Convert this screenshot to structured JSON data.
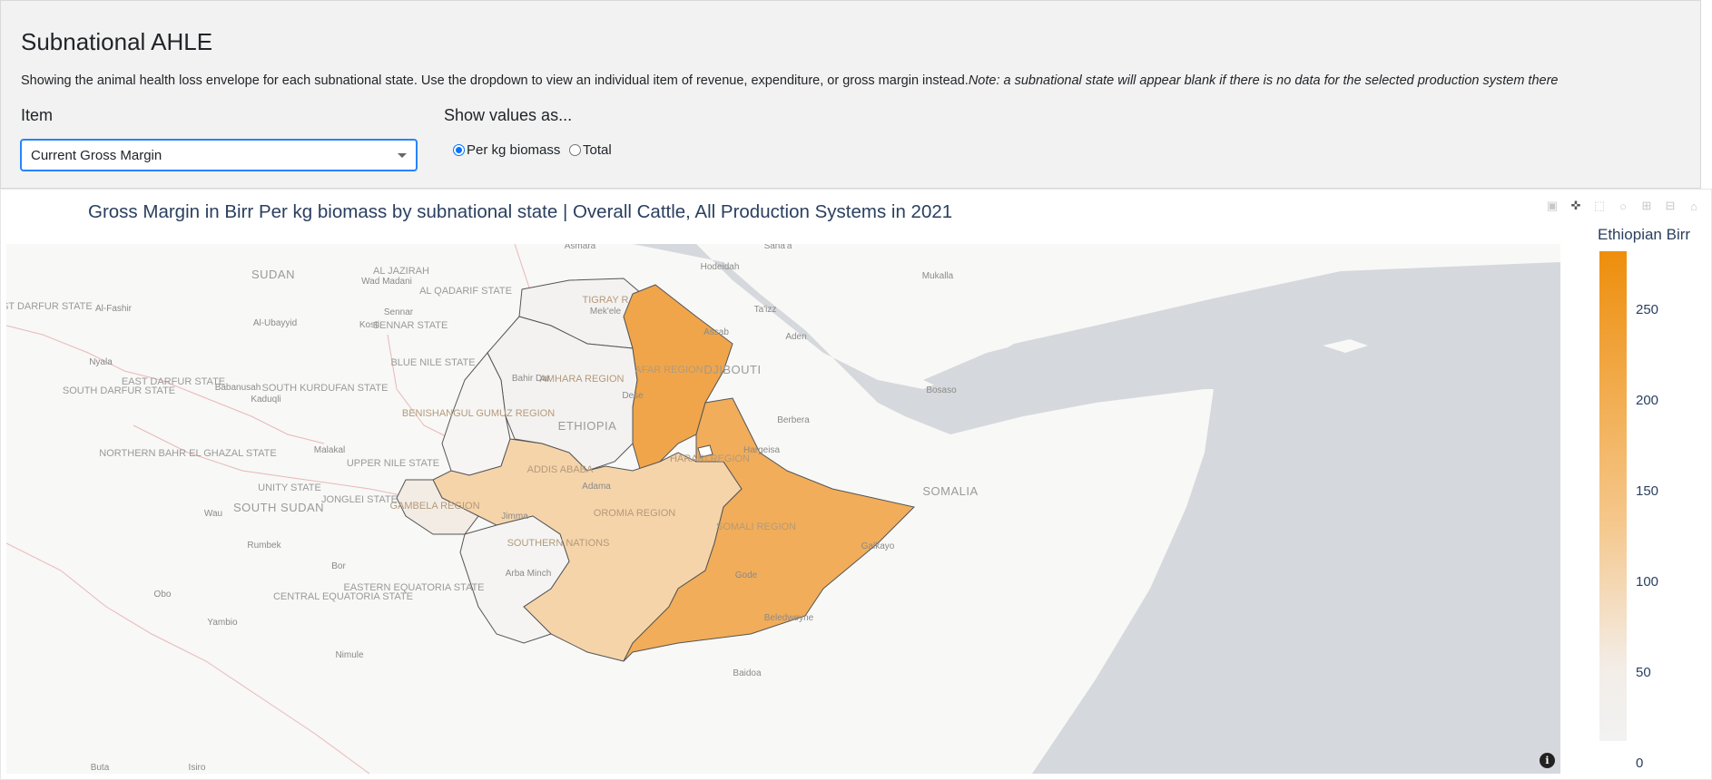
{
  "header": {
    "title": "Subnational AHLE",
    "description": "Showing the animal health loss envelope for each subnational state. Use the dropdown to view an individual item of revenue, expenditure, or gross margin instead.",
    "note": "Note: a subnational state will appear blank if there is no data for the selected production system there"
  },
  "controls": {
    "item_label": "Item",
    "item_value": "Current Gross Margin",
    "show_label": "Show values as...",
    "radio_per_kg": "Per kg biomass",
    "radio_total": "Total",
    "selected": "Per kg biomass"
  },
  "chart": {
    "title": "Gross Margin in Birr Per kg biomass by subnational state | Overall Cattle, All Production Systems in 2021",
    "colorbar_title": "Ethiopian Birr",
    "colorbar_ticks": [
      "250",
      "200",
      "150",
      "100",
      "50",
      "0"
    ],
    "colorscale": [
      "#f2f2f2",
      "#f5c78b",
      "#ee8e0c"
    ]
  },
  "map": {
    "countries": [
      "SUDAN",
      "ETHIOPIA",
      "DJIBOUTI",
      "SOMALIA",
      "SOUTH SUDAN"
    ],
    "regions": [
      "TIGRAY R",
      "AFAR REGION",
      "AMHARA REGION",
      "BENISHANGUL GUMUZ REGION",
      "ADDIS ABABA",
      "GAMBELA REGION",
      "OROMIA REGION",
      "SOUTHERN NATIONS",
      "SOMALI REGION",
      "HARARI REGION"
    ],
    "places": [
      "WEST DARFUR STATE",
      "Al-Fashir",
      "Al-Ubayyid",
      "AL JAZIRAH",
      "Wad Madani",
      "AL QADARIF STATE",
      "Sennar",
      "Kosti",
      "SENNAR STATE",
      "BLUE NILE STATE",
      "Nyala",
      "SOUTH DARFUR STATE",
      "EAST DARFUR STATE",
      "Babanusah",
      "Kaduqli",
      "SOUTH KURDUFAN STATE",
      "NORTHERN BAHR EL GHAZAL STATE",
      "Malakal",
      "UPPER NILE STATE",
      "UNITY STATE",
      "JONGLEI STATE",
      "Wau",
      "Rumbek",
      "Bor",
      "Obo",
      "CENTRAL EQUATORIA STATE",
      "EASTERN EQUATORIA STATE",
      "Yambio",
      "Nimule",
      "Buta",
      "Isiro",
      "Asmara",
      "Hodeidah",
      "Sana'a",
      "Mukalla",
      "Assab",
      "Ta'izz",
      "Aden",
      "Bosaso",
      "Berbera",
      "Hargeisa",
      "Galkayo",
      "Gode",
      "Beledweyne",
      "Baidoa",
      "Adama",
      "Jimma",
      "Arba Minch",
      "Bahir Dar",
      "Dese",
      "Mek'ele"
    ]
  },
  "chart_data": {
    "type": "choropleth",
    "title": "Gross Margin in Birr Per kg biomass by subnational state | Overall Cattle, All Production Systems in 2021",
    "colorbar_title": "Ethiopian Birr",
    "range": [
      0,
      270
    ],
    "categories": [
      "Afar",
      "Somali",
      "Oromia",
      "Amhara",
      "Tigray",
      "Benishangul Gumuz",
      "Gambela",
      "Southern Nations"
    ],
    "values": [
      240,
      195,
      95,
      15,
      10,
      5,
      20,
      10
    ]
  }
}
